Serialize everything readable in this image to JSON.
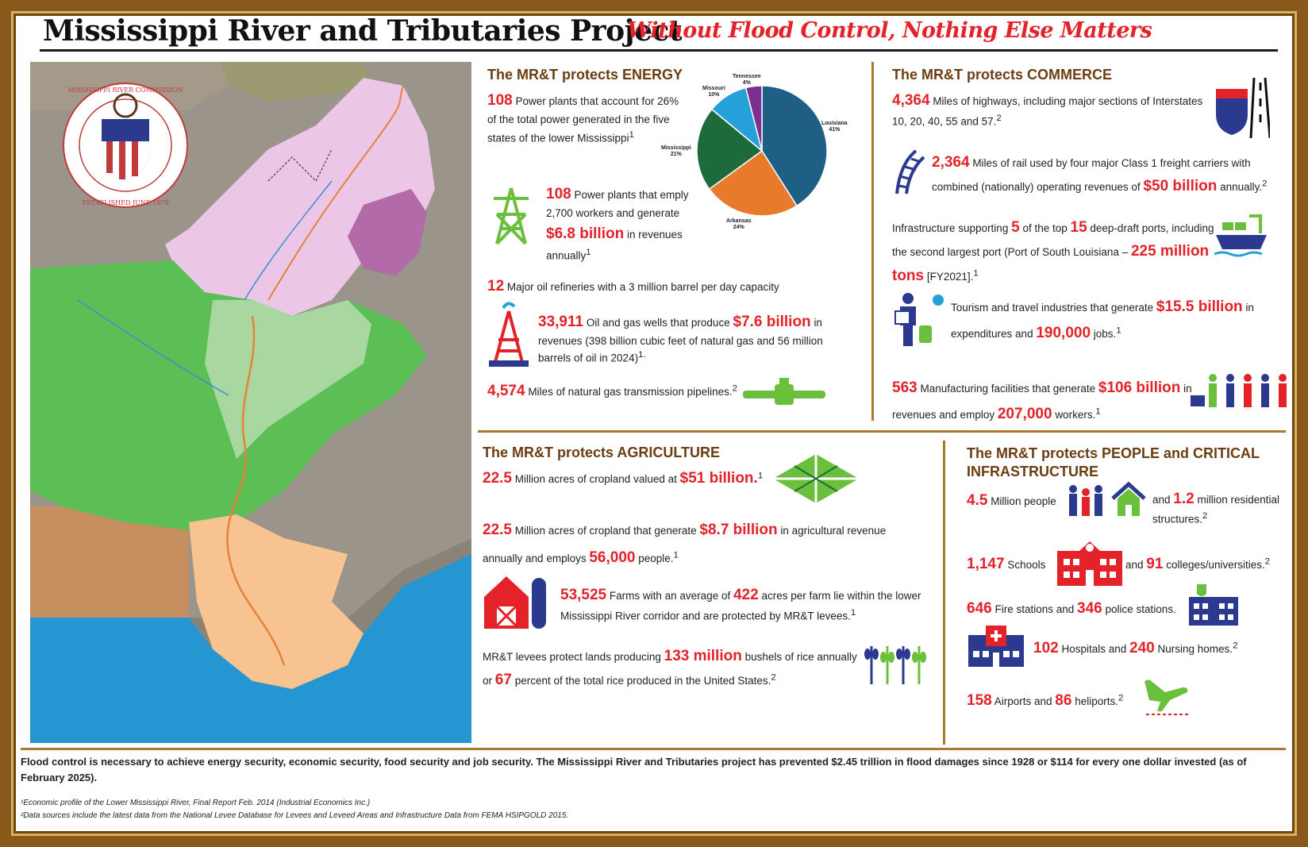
{
  "title": "Mississippi River and Tributaries Project",
  "subtitle": "Without Flood Control, Nothing Else Matters",
  "seal": {
    "text_top": "MISSISSIPPI RIVER COMMISSION",
    "text_bottom": "ESTABLISHED JUNE 1879"
  },
  "energy": {
    "heading": "The MR&T protects ENERGY",
    "item1_num": "108",
    "item1_text": "Power plants that account for 26% of the total power generated in the five states of the lower Mississippi",
    "item1_sup": "1",
    "item2_num": "108",
    "item2_text_a": "Power plants that emply 2,700 workers and generate",
    "item2_val": "$6.8 billion",
    "item2_text_b": "in revenues annually",
    "item2_sup": "1",
    "item3_num": "12",
    "item3_text": "Major oil refineries with a 3 million barrel per day capacity",
    "item4_num": "33,911",
    "item4_text_a": "Oil and gas wells that produce",
    "item4_val": "$7.6 billion",
    "item4_text_b": "in revenues (398 billion cubic feet of natural gas and 56 million barrels of oil in 2024)",
    "item4_sup": "1.",
    "item5_num": "4,574",
    "item5_text": "Miles of natural gas transmission pipelines.",
    "item5_sup": "2"
  },
  "pie": {
    "slices": [
      {
        "name": "Louisiana",
        "pct": "41%",
        "value": 41,
        "color": "#1f5f85"
      },
      {
        "name": "Arkansas",
        "pct": "24%",
        "value": 24,
        "color": "#e87a2c"
      },
      {
        "name": "Mississippi",
        "pct": "21%",
        "value": 21,
        "color": "#1d6b3a"
      },
      {
        "name": "Missouri",
        "pct": "10%",
        "value": 10,
        "color": "#26a0d8"
      },
      {
        "name": "Tennessee",
        "pct": "4%",
        "value": 4,
        "color": "#7b2f8e"
      }
    ]
  },
  "commerce": {
    "heading": "The MR&T protects COMMERCE",
    "item1_num": "4,364",
    "item1_text": "Miles of highways, including major sections of Interstates 10, 20, 40, 55 and 57.",
    "item1_sup": "2",
    "item2_num": "2,364",
    "item2_text_a": "Miles of rail used by four major Class 1 freight carriers with combined (nationally) operating revenues of",
    "item2_val": "$50 billion",
    "item2_text_b": "annually.",
    "item2_sup": "2",
    "item3_text_a": "Infrastructure supporting",
    "item3_num1": "5",
    "item3_text_b": "of the top",
    "item3_num2": "15",
    "item3_text_c": "deep-draft ports, including the second largest port (Port of South Louisiana –",
    "item3_val": "225 million tons",
    "item3_text_d": "[FY2021].",
    "item3_sup": "1",
    "item4_text_a": "Tourism and travel industries that generate",
    "item4_val1": "$15.5 billion",
    "item4_text_b": "in expenditures and",
    "item4_val2": "190,000",
    "item4_text_c": "jobs.",
    "item4_sup": "1",
    "item5_num": "563",
    "item5_text_a": "Manufacturing facilities that generate",
    "item5_val1": "$106 billion",
    "item5_text_b": "in revenues and employ",
    "item5_val2": "207,000",
    "item5_text_c": "workers.",
    "item5_sup": "1"
  },
  "agriculture": {
    "heading": "The MR&T protects AGRICULTURE",
    "item1_num": "22.5",
    "item1_text": "Million acres of cropland valued at",
    "item1_val": "$51 billion.",
    "item1_sup": "1",
    "item2_num": "22.5",
    "item2_text_a": "Million acres of cropland that generate",
    "item2_val1": "$8.7 billion",
    "item2_text_b": "in agricultural revenue annually and employs",
    "item2_val2": "56,000",
    "item2_text_c": "people.",
    "item2_sup": "1",
    "item3_num": "53,525",
    "item3_text_a": "Farms with an average of",
    "item3_val": "422",
    "item3_text_b": "acres per farm lie within the lower Mississippi River corridor and are protected by MR&T levees.",
    "item3_sup": "1",
    "item4_text_a": "MR&T levees protect lands producing",
    "item4_val1": "133 million",
    "item4_text_b": "bushels of rice annually or",
    "item4_val2": "67",
    "item4_text_c": "percent of the total rice produced in the United States.",
    "item4_sup": "2"
  },
  "people": {
    "heading": "The MR&T protects PEOPLE and CRITICAL INFRASTRUCTURE",
    "item1_num": "4.5",
    "item1_text": "Million people",
    "item1_text_b": "and",
    "item1_val": "1.2",
    "item1_text_c": "million residential structures.",
    "item1_sup": "2",
    "item2_num": "1,147",
    "item2_text": "Schools",
    "item2_text_b": "and",
    "item2_val": "91",
    "item2_text_c": "colleges/universities.",
    "item2_sup": "2",
    "item3_num": "646",
    "item3_text": "Fire stations and",
    "item3_val": "346",
    "item3_text_b": "police stations.",
    "item4_num": "102",
    "item4_text": "Hospitals and",
    "item4_val": "240",
    "item4_text_b": "Nursing homes.",
    "item4_sup": "2",
    "item5_num": "158",
    "item5_text": "Airports and",
    "item5_val": "86",
    "item5_text_b": "heliports.",
    "item5_sup": "2"
  },
  "footer": {
    "text": "Flood control is necessary to achieve energy security, economic security, food security and job security. The Mississippi River and Tributaries project has prevented $2.45 trillion in flood damages since 1928 or $114 for every one dollar invested (as of February 2025).",
    "fn1": "¹Economic profile of the Lower Mississippi River, Final Report Feb. 2014 (Industrial Economics Inc.)",
    "fn2": "²Data sources include the latest data from the National Levee Database for Levees and Leveed Areas and Infrastructure Data from FEMA HSIPGOLD 2015."
  },
  "colors": {
    "accent_red": "#e3222a",
    "heading_brown": "#6b3d12",
    "frame_gold": "#a8782c",
    "icon_green": "#6abf3c",
    "icon_navy": "#2b3a8f"
  }
}
